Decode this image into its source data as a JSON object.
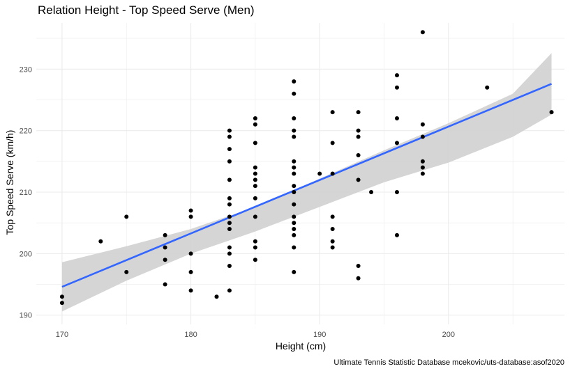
{
  "chart_data": {
    "type": "scatter",
    "title": "Relation Height - Top Speed Serve (Men)",
    "xlabel": "Height (cm)",
    "ylabel": "Top Speed Serve (km/h)",
    "caption": "Ultimate Tennis Statistic Database mcekovic/uts-database:asof2020",
    "xlim": [
      168,
      209
    ],
    "ylim": [
      188.5,
      237.5
    ],
    "x_ticks": [
      170,
      180,
      190,
      200
    ],
    "y_ticks": [
      190,
      200,
      210,
      220,
      230
    ],
    "grid": true,
    "colors": {
      "points": "#000000",
      "fit_line": "#3366FF",
      "confidence_band": "#D3D3D3",
      "grid": "#EBEBEB"
    },
    "fit": {
      "type": "linear",
      "x": [
        170,
        208
      ],
      "y": [
        194.6,
        227.6
      ]
    },
    "confidence_band": {
      "x": [
        170,
        175,
        180,
        185,
        190,
        195,
        200,
        205,
        208
      ],
      "upper": [
        198.6,
        201.2,
        204.0,
        207.6,
        212.2,
        216.8,
        221.2,
        226.0,
        232.6
      ],
      "lower": [
        190.6,
        195.6,
        200.0,
        203.6,
        207.6,
        211.6,
        214.8,
        219.0,
        222.6
      ]
    },
    "points": [
      {
        "x": 170,
        "y": 193
      },
      {
        "x": 170,
        "y": 192
      },
      {
        "x": 173,
        "y": 202
      },
      {
        "x": 175,
        "y": 206
      },
      {
        "x": 175,
        "y": 197
      },
      {
        "x": 178,
        "y": 203
      },
      {
        "x": 178,
        "y": 201
      },
      {
        "x": 178,
        "y": 199
      },
      {
        "x": 178,
        "y": 195
      },
      {
        "x": 180,
        "y": 207
      },
      {
        "x": 180,
        "y": 206
      },
      {
        "x": 180,
        "y": 200
      },
      {
        "x": 180,
        "y": 197
      },
      {
        "x": 180,
        "y": 194
      },
      {
        "x": 182,
        "y": 193
      },
      {
        "x": 183,
        "y": 220
      },
      {
        "x": 183,
        "y": 219
      },
      {
        "x": 183,
        "y": 217
      },
      {
        "x": 183,
        "y": 215
      },
      {
        "x": 183,
        "y": 212
      },
      {
        "x": 183,
        "y": 209
      },
      {
        "x": 183,
        "y": 208
      },
      {
        "x": 183,
        "y": 206
      },
      {
        "x": 183,
        "y": 205
      },
      {
        "x": 183,
        "y": 204
      },
      {
        "x": 183,
        "y": 201
      },
      {
        "x": 183,
        "y": 200
      },
      {
        "x": 183,
        "y": 198
      },
      {
        "x": 183,
        "y": 194
      },
      {
        "x": 185,
        "y": 222
      },
      {
        "x": 185,
        "y": 221
      },
      {
        "x": 185,
        "y": 218
      },
      {
        "x": 185,
        "y": 214
      },
      {
        "x": 185,
        "y": 213
      },
      {
        "x": 185,
        "y": 212
      },
      {
        "x": 185,
        "y": 211
      },
      {
        "x": 185,
        "y": 209
      },
      {
        "x": 185,
        "y": 206
      },
      {
        "x": 185,
        "y": 202
      },
      {
        "x": 185,
        "y": 201
      },
      {
        "x": 185,
        "y": 199
      },
      {
        "x": 188,
        "y": 228
      },
      {
        "x": 188,
        "y": 226
      },
      {
        "x": 188,
        "y": 222
      },
      {
        "x": 188,
        "y": 220
      },
      {
        "x": 188,
        "y": 219
      },
      {
        "x": 188,
        "y": 215
      },
      {
        "x": 188,
        "y": 214
      },
      {
        "x": 188,
        "y": 213
      },
      {
        "x": 188,
        "y": 211
      },
      {
        "x": 188,
        "y": 210
      },
      {
        "x": 188,
        "y": 208
      },
      {
        "x": 188,
        "y": 206
      },
      {
        "x": 188,
        "y": 205
      },
      {
        "x": 188,
        "y": 204
      },
      {
        "x": 188,
        "y": 203
      },
      {
        "x": 188,
        "y": 201
      },
      {
        "x": 188,
        "y": 197
      },
      {
        "x": 190,
        "y": 213
      },
      {
        "x": 191,
        "y": 223
      },
      {
        "x": 191,
        "y": 218
      },
      {
        "x": 191,
        "y": 213
      },
      {
        "x": 191,
        "y": 206
      },
      {
        "x": 191,
        "y": 204
      },
      {
        "x": 191,
        "y": 202
      },
      {
        "x": 191,
        "y": 201
      },
      {
        "x": 193,
        "y": 223
      },
      {
        "x": 193,
        "y": 220
      },
      {
        "x": 193,
        "y": 219
      },
      {
        "x": 193,
        "y": 216
      },
      {
        "x": 193,
        "y": 212
      },
      {
        "x": 193,
        "y": 198
      },
      {
        "x": 193,
        "y": 196
      },
      {
        "x": 194,
        "y": 210
      },
      {
        "x": 196,
        "y": 229
      },
      {
        "x": 196,
        "y": 227
      },
      {
        "x": 196,
        "y": 222
      },
      {
        "x": 196,
        "y": 218
      },
      {
        "x": 196,
        "y": 210
      },
      {
        "x": 196,
        "y": 203
      },
      {
        "x": 198,
        "y": 236
      },
      {
        "x": 198,
        "y": 221
      },
      {
        "x": 198,
        "y": 219
      },
      {
        "x": 198,
        "y": 215
      },
      {
        "x": 198,
        "y": 214
      },
      {
        "x": 198,
        "y": 213
      },
      {
        "x": 203,
        "y": 227
      },
      {
        "x": 208,
        "y": 223
      }
    ]
  }
}
